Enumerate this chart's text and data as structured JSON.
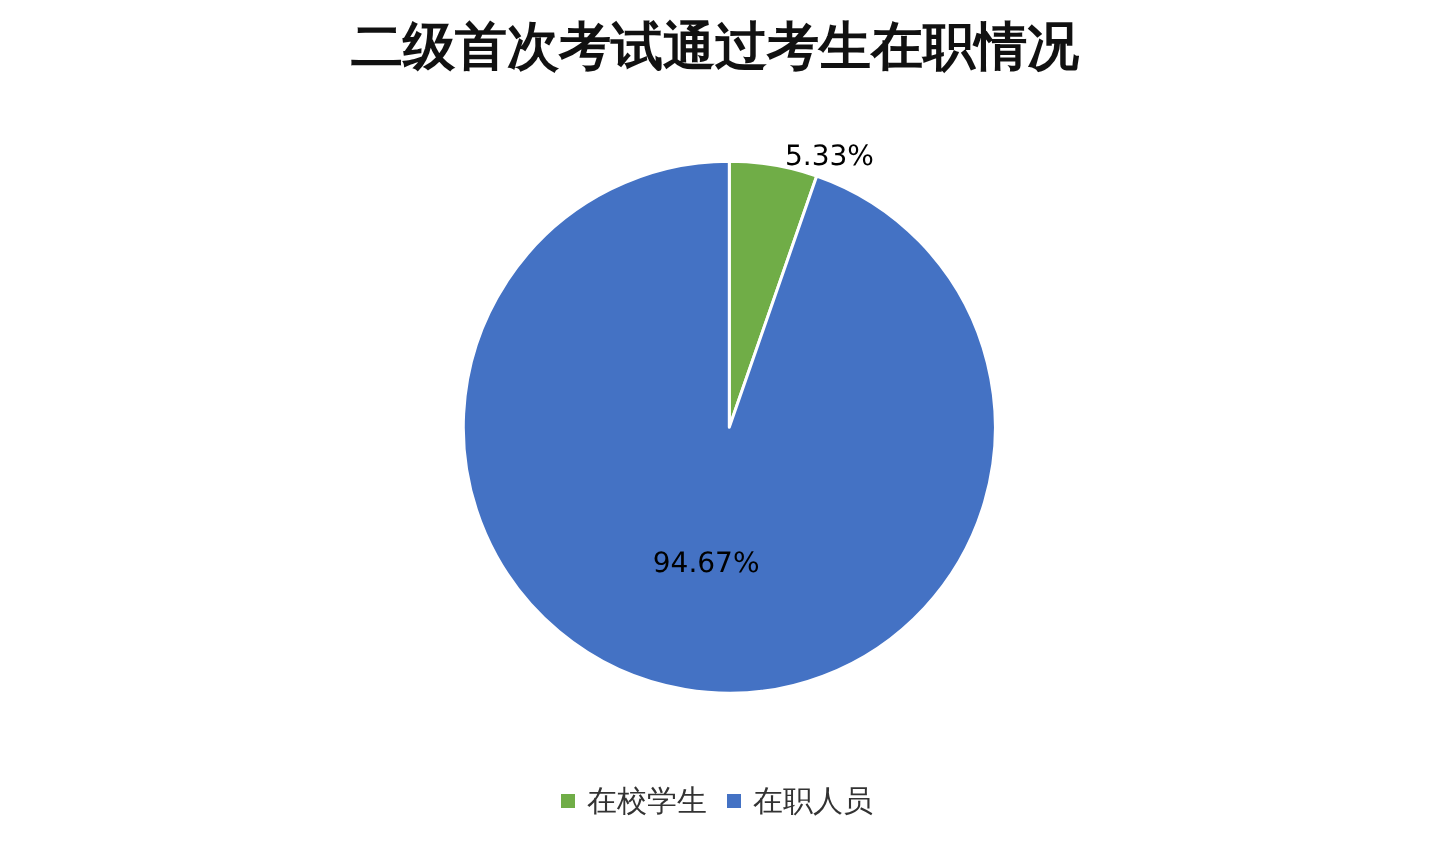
{
  "chart_data": {
    "type": "pie",
    "title": "二级首次考试通过考生在职情况",
    "categories": [
      "在校学生",
      "在职人员"
    ],
    "values": [
      5.33,
      94.67
    ],
    "colors": [
      "#70ad47",
      "#4472c4"
    ],
    "value_labels": [
      "5.33%",
      "94.67%"
    ],
    "legend": "bottom"
  }
}
